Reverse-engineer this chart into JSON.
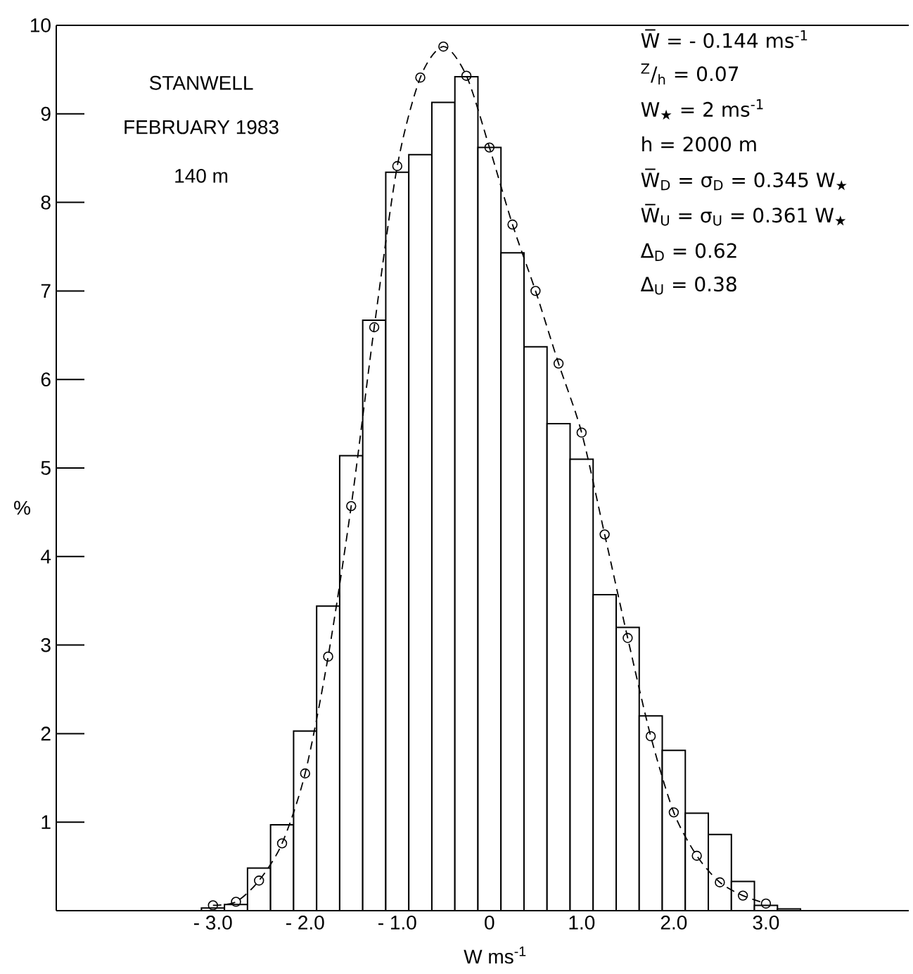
{
  "chart_data": {
    "type": "histogram",
    "series": [
      {
        "color": "#ffffff",
        "bins": [
          -3.125,
          -2.875,
          -2.625,
          -2.375,
          -2.125,
          -1.875,
          -1.625,
          -1.375,
          -1.125,
          -0.875,
          -0.625,
          -0.375,
          -0.125,
          0.125,
          0.375,
          0.625,
          0.875,
          1.125,
          1.375,
          1.625,
          1.875,
          2.125,
          2.375,
          2.625,
          2.875,
          3.125,
          3.375
        ],
        "values": [
          0.03,
          0.07,
          0.48,
          0.97,
          2.03,
          3.44,
          5.14,
          6.67,
          8.34,
          8.54,
          9.13,
          9.42,
          8.62,
          7.43,
          6.37,
          5.5,
          5.1,
          3.57,
          3.2,
          2.2,
          1.81,
          1.1,
          0.86,
          0.33,
          0.06,
          0.02
        ]
      },
      {
        "type": "line",
        "color": "#000000",
        "marker": "circle",
        "line_style": "dashed",
        "x": [
          -3.0,
          -2.75,
          -2.5,
          -2.25,
          -2.0,
          -1.75,
          -1.5,
          -1.25,
          -1.0,
          -0.75,
          -0.5,
          -0.25,
          0,
          0.25,
          0.5,
          0.75,
          1.0,
          1.25,
          1.5,
          1.75,
          2.0,
          2.25,
          2.5,
          2.75,
          3.0
        ],
        "values": [
          0.06,
          0.1,
          0.34,
          0.76,
          1.55,
          2.87,
          4.57,
          6.59,
          8.41,
          9.41,
          9.76,
          9.43,
          8.62,
          7.75,
          7.0,
          6.18,
          5.4,
          4.25,
          3.08,
          1.97,
          1.11,
          0.62,
          0.32,
          0.17,
          0.08
        ]
      }
    ],
    "xlabel": "W ms$^{-1}$",
    "ylabel": "%",
    "xlim": [
      -4.7,
      4.55
    ],
    "ylim": [
      0,
      10
    ],
    "xticks": [
      {
        "value": -3,
        "label": "- 3.0"
      },
      {
        "value": -2,
        "label": "- 2.0"
      },
      {
        "value": -1,
        "label": "- 1.0"
      },
      0,
      {
        "value": 1,
        "label": "1.0"
      },
      {
        "value": 2,
        "label": "2.0"
      },
      {
        "value": 3,
        "label": "3.0"
      }
    ],
    "yticks": [
      1,
      2,
      3,
      4,
      5,
      6,
      7,
      8,
      9,
      10
    ],
    "annotations": [
      "STANWELL",
      "FEBRUARY 1983",
      "140 m",
      "W̅ = - 0.144 ms$^{-1}$",
      "$^{Z}$/$_{h}$ = 0.07",
      "W$_{★}$ = 2 ms$^{-1}$",
      "h = 2000 m",
      "W̅$_{D}$ = σ$_{D}$ = 0.345 W$_{★}$",
      "W̅$_{U}$ = σ$_{U}$ = 0.361 W$_{★}$",
      "Δ$_{D}$ = 0.62",
      "Δ$_{U}$ = 0.38"
    ]
  }
}
